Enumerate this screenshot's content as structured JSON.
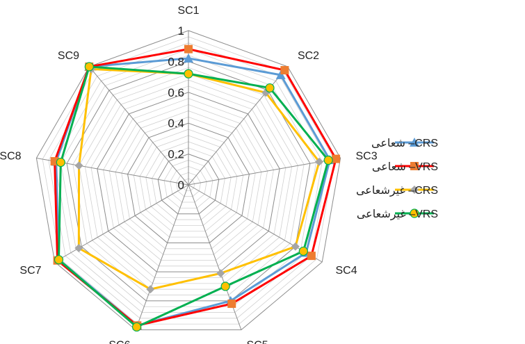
{
  "chart_data": {
    "type": "radar",
    "categories": [
      "SC1",
      "SC2",
      "SC3",
      "SC4",
      "SC5",
      "SC6",
      "SC7",
      "SC8",
      "SC9"
    ],
    "rlim": [
      0,
      1
    ],
    "ticks": [
      "0",
      "0.2",
      "0.4",
      "0.6",
      "0.8",
      "1"
    ],
    "tick_values": [
      0,
      0.2,
      0.4,
      0.6,
      0.8,
      1
    ],
    "minor_step": 0.04,
    "grid": true,
    "legend_position": "right",
    "series": [
      {
        "name": "CRS– شعاعی",
        "color": "#5b9bd5",
        "marker": "triangle",
        "values": [
          0.82,
          0.93,
          0.93,
          0.88,
          0.8,
          0.97,
          0.97,
          0.87,
          1.0
        ]
      },
      {
        "name": "VRS– شعاعی",
        "color": "#ff0000",
        "marker": "square",
        "marker_color": "#ed7d31",
        "values": [
          0.88,
          0.97,
          0.97,
          0.92,
          0.82,
          0.97,
          0.98,
          0.88,
          1.0
        ]
      },
      {
        "name": "CRS– غیرشعاعی",
        "color": "#ffc000",
        "marker": "diamond",
        "marker_color": "#a5a5a5",
        "values": [
          0.72,
          0.78,
          0.86,
          0.8,
          0.61,
          0.72,
          0.82,
          0.72,
          0.98
        ]
      },
      {
        "name": "VRS– غیرشعاعی",
        "color": "#00b050",
        "marker": "circle",
        "marker_color": "#ffc000",
        "values": [
          0.72,
          0.82,
          0.92,
          0.86,
          0.7,
          0.98,
          0.97,
          0.84,
          1.0
        ]
      }
    ]
  }
}
